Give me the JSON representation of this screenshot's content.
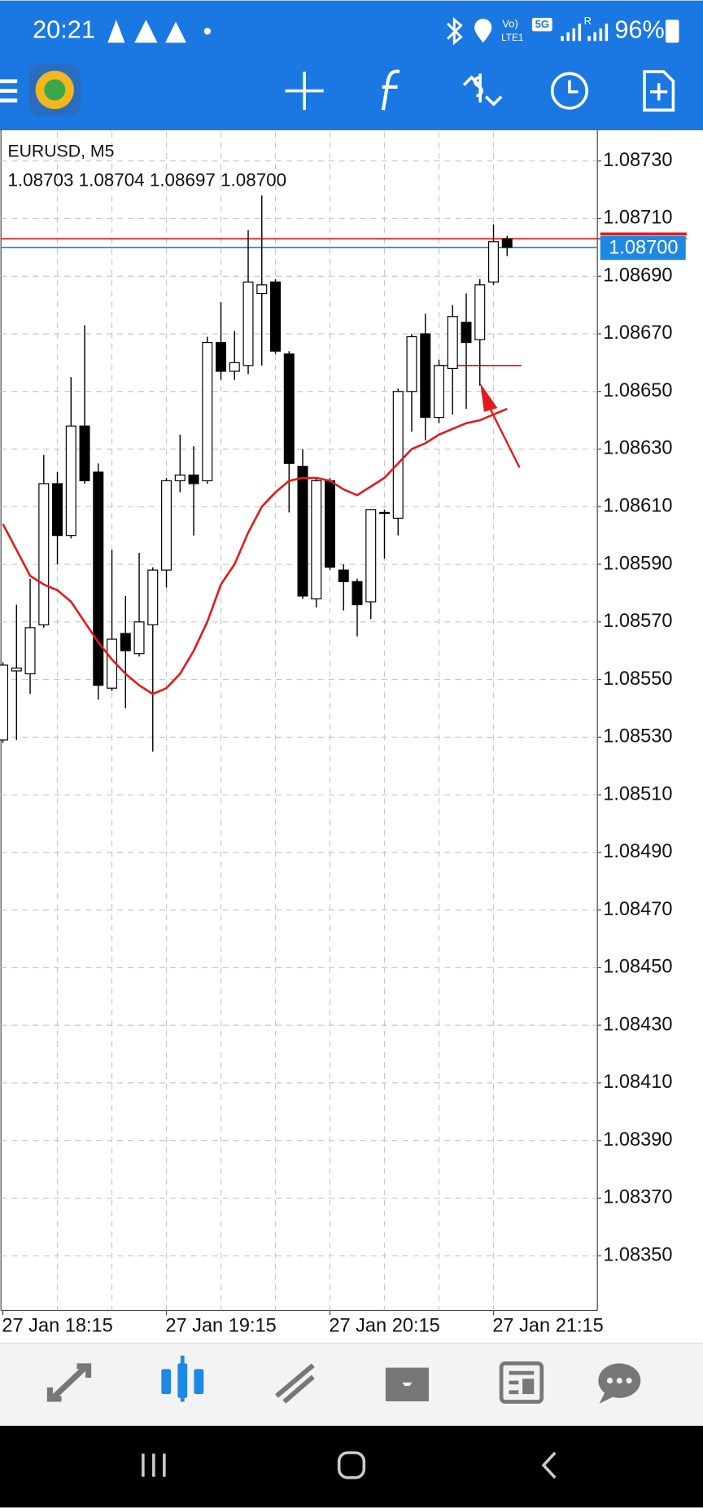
{
  "status_bar": {
    "time": "20:21",
    "volte": "Vo)",
    "lte": "LTE1",
    "network": "5G",
    "roaming": "R",
    "battery": "96%"
  },
  "chart_data": {
    "type": "candlestick",
    "title": "EURUSD, M5",
    "ohlc_text": "1.08703 1.08704 1.08697 1.08700",
    "categories": [
      "27 Jan 18:15",
      null,
      null,
      null,
      null,
      null,
      null,
      null,
      null,
      null,
      null,
      null,
      "27 Jan 19:15",
      null,
      null,
      null,
      null,
      null,
      null,
      null,
      null,
      null,
      null,
      null,
      "27 Jan 20:15",
      null,
      null,
      null,
      null,
      null,
      null,
      null,
      null,
      null,
      null,
      null,
      "27 Jan 21:15",
      null
    ],
    "open": [
      1.08529,
      1.08553,
      1.08552,
      1.08569,
      1.08618,
      1.086,
      1.08638,
      1.08622,
      1.08547,
      1.08566,
      1.08559,
      1.08569,
      1.08588,
      1.08619,
      1.08621,
      1.08619,
      1.08667,
      1.08657,
      1.08659,
      1.08684,
      1.08688,
      1.08663,
      1.08624,
      1.08578,
      1.08619,
      1.08588,
      1.08584,
      1.08577,
      1.08608,
      1.08606,
      1.0865,
      1.0867,
      1.08641,
      1.08658,
      1.08674,
      1.08668,
      1.08688,
      1.08703
    ],
    "high": [
      1.08556,
      1.08576,
      1.08585,
      1.08628,
      1.08622,
      1.08655,
      1.08673,
      1.08625,
      1.08595,
      1.08579,
      1.08594,
      1.08589,
      1.0862,
      1.08635,
      1.08631,
      1.08669,
      1.08681,
      1.08671,
      1.08706,
      1.08718,
      1.08689,
      1.08664,
      1.0863,
      1.0862,
      1.0862,
      1.0859,
      1.08585,
      1.08609,
      1.08609,
      1.08651,
      1.0867,
      1.08677,
      1.08661,
      1.0868,
      1.08684,
      1.08689,
      1.08708,
      1.08704
    ],
    "low": [
      1.08528,
      1.08529,
      1.08545,
      1.08568,
      1.0859,
      1.08599,
      1.08618,
      1.08543,
      1.08546,
      1.0854,
      1.08558,
      1.08525,
      1.08582,
      1.08615,
      1.086,
      1.08618,
      1.08654,
      1.08654,
      1.08656,
      1.08659,
      1.08663,
      1.08608,
      1.08578,
      1.08575,
      1.08588,
      1.08574,
      1.08565,
      1.08571,
      1.08592,
      1.086,
      1.08636,
      1.08633,
      1.08639,
      1.08642,
      1.08644,
      1.08652,
      1.08687,
      1.08697
    ],
    "close": [
      1.08555,
      1.08554,
      1.08568,
      1.08618,
      1.086,
      1.08638,
      1.08619,
      1.08548,
      1.08564,
      1.0856,
      1.0857,
      1.08588,
      1.08619,
      1.08621,
      1.08618,
      1.08667,
      1.08657,
      1.0866,
      1.08688,
      1.08687,
      1.08664,
      1.08625,
      1.08579,
      1.08619,
      1.08589,
      1.08584,
      1.08576,
      1.08609,
      1.08608,
      1.0865,
      1.08669,
      1.08641,
      1.08659,
      1.08676,
      1.08667,
      1.08687,
      1.08702,
      1.087
    ],
    "up_color": "#ffffff",
    "down_color": "#000000",
    "ma": {
      "color": "#e01b1b",
      "values": [
        1.08604,
        1.08595,
        1.08586,
        1.08583,
        1.08581,
        1.08577,
        1.0857,
        1.08563,
        1.08557,
        1.08552,
        1.08548,
        1.08545,
        1.08547,
        1.08552,
        1.0856,
        1.0857,
        1.08583,
        1.0859,
        1.08601,
        1.0861,
        1.08615,
        1.08619,
        1.0862,
        1.0862,
        1.08619,
        1.08616,
        1.08614,
        1.08617,
        1.0862,
        1.08625,
        1.0863,
        1.08632,
        1.08635,
        1.08637,
        1.08639,
        1.0864,
        1.08642,
        1.08644
      ]
    },
    "bid_line": {
      "value": 1.087,
      "label": "1.08700",
      "color": "#1e88e5"
    },
    "ask_line": {
      "value": 1.08703,
      "color": "#e01b1b"
    },
    "horizontal_line": {
      "value": 1.08659,
      "color": "#e01b1b"
    },
    "ylim": [
      1.08331,
      1.0874
    ],
    "yticks": [
      {
        "value": 1.0873,
        "label": "1.08730"
      },
      {
        "value": 1.0871,
        "label": "1.08710"
      },
      {
        "value": 1.0869,
        "label": "1.08690"
      },
      {
        "value": 1.0867,
        "label": "1.08670"
      },
      {
        "value": 1.0865,
        "label": "1.08650"
      },
      {
        "value": 1.0863,
        "label": "1.08630"
      },
      {
        "value": 1.0861,
        "label": "1.08610"
      },
      {
        "value": 1.0859,
        "label": "1.08590"
      },
      {
        "value": 1.0857,
        "label": "1.08570"
      },
      {
        "value": 1.0855,
        "label": "1.08550"
      },
      {
        "value": 1.0853,
        "label": "1.08530"
      },
      {
        "value": 1.0851,
        "label": "1.08510"
      },
      {
        "value": 1.0849,
        "label": "1.08490"
      },
      {
        "value": 1.0847,
        "label": "1.08470"
      },
      {
        "value": 1.0845,
        "label": "1.08450"
      },
      {
        "value": 1.0843,
        "label": "1.08430"
      },
      {
        "value": 1.0841,
        "label": "1.08410"
      },
      {
        "value": 1.0839,
        "label": "1.08390"
      },
      {
        "value": 1.0837,
        "label": "1.08370"
      },
      {
        "value": 1.0835,
        "label": "1.08350"
      }
    ],
    "grid": true
  }
}
